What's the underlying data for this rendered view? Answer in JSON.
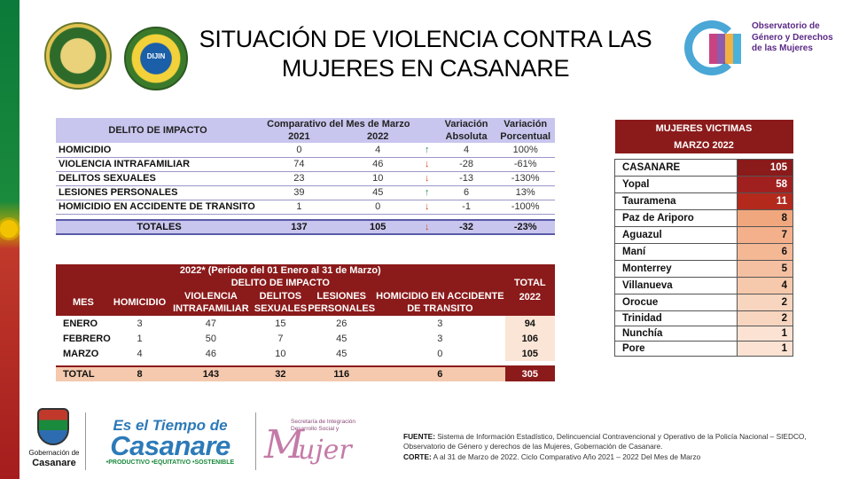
{
  "header": {
    "title": "SITUACIÓN DE VIOLENCIA CONTRA LAS MUJERES EN CASANARE",
    "observatorio": "Observatorio de Género y Derechos de las Mujeres",
    "dijin": "DIJIN"
  },
  "table1": {
    "col_delito": "DELITO DE IMPACTO",
    "col_comparativo": "Comparativo del Mes de Marzo",
    "col_y1": "2021",
    "col_y2": "2022",
    "col_var_abs": "Variación Absoluta",
    "col_var_pct": "Variación Porcentual",
    "rows": [
      {
        "name": "HOMICIDIO",
        "y2021": "0",
        "y2022": "4",
        "trend": "up",
        "abs": "4",
        "pct": "100%"
      },
      {
        "name": "VIOLENCIA INTRAFAMILIAR",
        "y2021": "74",
        "y2022": "46",
        "trend": "down",
        "abs": "-28",
        "pct": "-61%"
      },
      {
        "name": "DELITOS SEXUALES",
        "y2021": "23",
        "y2022": "10",
        "trend": "down",
        "abs": "-13",
        "pct": "-130%"
      },
      {
        "name": "LESIONES PERSONALES",
        "y2021": "39",
        "y2022": "45",
        "trend": "up",
        "abs": "6",
        "pct": "13%"
      },
      {
        "name": "HOMICIDIO EN ACCIDENTE DE TRANSITO",
        "y2021": "1",
        "y2022": "0",
        "trend": "down",
        "abs": "-1",
        "pct": "-100%"
      }
    ],
    "total": {
      "name": "TOTALES",
      "y2021": "137",
      "y2022": "105",
      "trend": "down",
      "abs": "-32",
      "pct": "-23%"
    }
  },
  "table2": {
    "period": "2022* (Período del 01 Enero al 31 de Marzo)",
    "delito": "DELITO DE IMPACTO",
    "col_mes": "MES",
    "col_homicidio": "HOMICIDIO",
    "col_violencia": "VIOLENCIA INTRAFAMILIAR",
    "col_sexuales": "DELITOS SEXUALES",
    "col_lesiones": "LESIONES PERSONALES",
    "col_transito": "HOMICIDIO EN ACCIDENTE DE TRANSITO",
    "col_total": "TOTAL 2022",
    "rows": [
      {
        "mes": "ENERO",
        "h": "3",
        "v": "47",
        "s": "15",
        "l": "26",
        "t": "3",
        "tot": "94"
      },
      {
        "mes": "FEBRERO",
        "h": "1",
        "v": "50",
        "s": "7",
        "l": "45",
        "t": "3",
        "tot": "106"
      },
      {
        "mes": "MARZO",
        "h": "4",
        "v": "46",
        "s": "10",
        "l": "45",
        "t": "0",
        "tot": "105"
      }
    ],
    "total": {
      "mes": "TOTAL",
      "h": "8",
      "v": "143",
      "s": "32",
      "l": "116",
      "t": "6",
      "tot": "305"
    }
  },
  "table3": {
    "title1": "MUJERES VICTIMAS",
    "title2": "MARZO 2022",
    "rows": [
      {
        "name": "CASANARE",
        "value": "105",
        "shade": "#8b1a1a",
        "text": "#ffffff"
      },
      {
        "name": "Yopal",
        "value": "58",
        "shade": "#a02020",
        "text": "#ffffff"
      },
      {
        "name": "Tauramena",
        "value": "11",
        "shade": "#b32a1d",
        "text": "#ffffff"
      },
      {
        "name": "Paz de Ariporo",
        "value": "8",
        "shade": "#f1a77e",
        "text": "#111111"
      },
      {
        "name": "Aguazul",
        "value": "7",
        "shade": "#f3b08b",
        "text": "#111111"
      },
      {
        "name": "Maní",
        "value": "6",
        "shade": "#f4b895",
        "text": "#111111"
      },
      {
        "name": "Monterrey",
        "value": "5",
        "shade": "#f5c0a1",
        "text": "#111111"
      },
      {
        "name": "Villanueva",
        "value": "4",
        "shade": "#f6c8ac",
        "text": "#111111"
      },
      {
        "name": "Orocue",
        "value": "2",
        "shade": "#f8d5bf",
        "text": "#111111"
      },
      {
        "name": "Trinidad",
        "value": "2",
        "shade": "#f8d5bf",
        "text": "#111111"
      },
      {
        "name": "Nunchía",
        "value": "1",
        "shade": "#fbe2d2",
        "text": "#111111"
      },
      {
        "name": "Pore",
        "value": "1",
        "shade": "#fbe2d2",
        "text": "#111111"
      }
    ]
  },
  "footer": {
    "gob_line1": "Gobernación de",
    "gob_line2": "Casanare",
    "tiempo_a": "Es el Tiempo de",
    "tiempo_b": "Casanare",
    "tiempo_c": "•PRODUCTIVO •EQUITATIVO •SOSTENIBLE",
    "mujer_sec": "Secretaría de Integración Desarrollo Social y",
    "mujer_m": "M",
    "mujer_w": "ujer",
    "fuente_label": "FUENTE:",
    "fuente_text": "Sistema de Información Estadístico, Delincuencial Contravencional y Operativo de la Policía Nacional – SIEDCO, Observatorio de Género y derechos de las Mujeres, Gobernación de Casanare.",
    "corte_label": "CORTE:",
    "corte_text": "A al 31 de Marzo de 2022. Ciclo Comparativo Año 2021 – 2022 Del Mes de Marzo"
  }
}
